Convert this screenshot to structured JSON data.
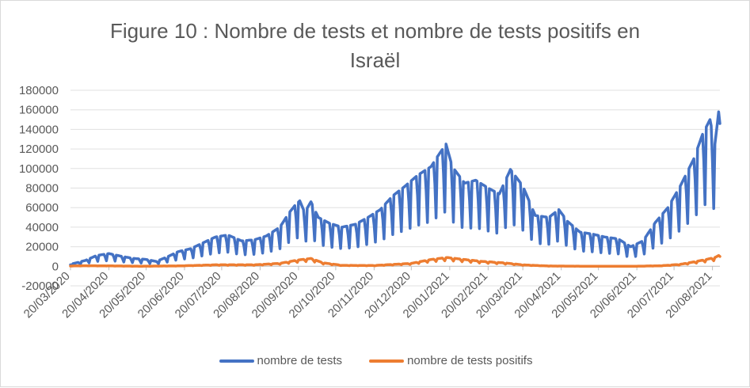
{
  "chart_data": {
    "type": "line",
    "title": "Figure 10 : Nombre de tests et nombre de tests positifs en Israël",
    "title_lines": [
      "Figure 10 : Nombre de tests et nombre de tests positifs en",
      "Israël"
    ],
    "xlabel": "",
    "ylabel": "",
    "ylim": [
      -20000,
      180000
    ],
    "y_ticks": [
      -20000,
      0,
      20000,
      40000,
      60000,
      80000,
      100000,
      120000,
      140000,
      160000,
      180000
    ],
    "y_tick_labels": [
      "-20000",
      "0",
      "20000",
      "40000",
      "60000",
      "80000",
      "100000",
      "120000",
      "140000",
      "160000",
      "180000"
    ],
    "x_range": [
      "2020-03-20",
      "2021-08-26"
    ],
    "x_tick_dates": [
      "2020-03-20",
      "2020-04-20",
      "2020-05-20",
      "2020-06-20",
      "2020-07-20",
      "2020-08-20",
      "2020-09-20",
      "2020-10-20",
      "2020-11-20",
      "2020-12-20",
      "2021-01-20",
      "2021-02-20",
      "2021-03-20",
      "2021-04-20",
      "2021-05-20",
      "2021-06-20",
      "2021-07-20",
      "2021-08-20"
    ],
    "x_tick_labels": [
      "20/03/2020",
      "20/04/2020",
      "20/05/2020",
      "20/06/2020",
      "20/07/2020",
      "20/08/2020",
      "20/09/2020",
      "20/10/2020",
      "20/11/2020",
      "20/12/2020",
      "20/01/2021",
      "20/02/2021",
      "20/03/2021",
      "20/04/2021",
      "20/05/2021",
      "20/06/2021",
      "20/07/2021",
      "20/08/2021"
    ],
    "grid": true,
    "legend_position": "bottom",
    "series": [
      {
        "name": "nombre de tests",
        "color": "#4472c4",
        "weekly_dip_pct": 55,
        "points": [
          [
            "2020-03-20",
            2000
          ],
          [
            "2020-04-01",
            6000
          ],
          [
            "2020-04-10",
            11000
          ],
          [
            "2020-04-20",
            13000
          ],
          [
            "2020-05-01",
            10000
          ],
          [
            "2020-05-10",
            8000
          ],
          [
            "2020-05-20",
            7000
          ],
          [
            "2020-05-28",
            5000
          ],
          [
            "2020-06-05",
            9000
          ],
          [
            "2020-06-15",
            15000
          ],
          [
            "2020-06-25",
            18000
          ],
          [
            "2020-07-05",
            24000
          ],
          [
            "2020-07-15",
            30000
          ],
          [
            "2020-07-25",
            32000
          ],
          [
            "2020-08-05",
            26000
          ],
          [
            "2020-08-15",
            27000
          ],
          [
            "2020-08-25",
            31000
          ],
          [
            "2020-09-05",
            40000
          ],
          [
            "2020-09-12",
            54000
          ],
          [
            "2020-09-17",
            62000
          ],
          [
            "2020-09-21",
            67000
          ],
          [
            "2020-09-25",
            55000
          ],
          [
            "2020-09-30",
            66000
          ],
          [
            "2020-10-06",
            50000
          ],
          [
            "2020-10-15",
            44000
          ],
          [
            "2020-10-25",
            40000
          ],
          [
            "2020-11-05",
            43000
          ],
          [
            "2020-11-15",
            50000
          ],
          [
            "2020-11-25",
            58000
          ],
          [
            "2020-12-05",
            72000
          ],
          [
            "2020-12-15",
            82000
          ],
          [
            "2020-12-25",
            93000
          ],
          [
            "2021-01-05",
            102000
          ],
          [
            "2021-01-10",
            112000
          ],
          [
            "2021-01-17",
            125000
          ],
          [
            "2021-01-22",
            102000
          ],
          [
            "2021-02-01",
            85000
          ],
          [
            "2021-02-10",
            88000
          ],
          [
            "2021-02-20",
            80000
          ],
          [
            "2021-03-01",
            74000
          ],
          [
            "2021-03-10",
            99000
          ],
          [
            "2021-03-20",
            82000
          ],
          [
            "2021-03-30",
            52000
          ],
          [
            "2021-04-10",
            50000
          ],
          [
            "2021-04-18",
            58000
          ],
          [
            "2021-04-25",
            46000
          ],
          [
            "2021-05-05",
            35000
          ],
          [
            "2021-05-15",
            33000
          ],
          [
            "2021-05-25",
            30000
          ],
          [
            "2021-06-05",
            28000
          ],
          [
            "2021-06-15",
            20000
          ],
          [
            "2021-06-25",
            26000
          ],
          [
            "2021-07-05",
            45000
          ],
          [
            "2021-07-15",
            60000
          ],
          [
            "2021-07-25",
            82000
          ],
          [
            "2021-08-05",
            110000
          ],
          [
            "2021-08-12",
            135000
          ],
          [
            "2021-08-18",
            150000
          ],
          [
            "2021-08-22",
            125000
          ],
          [
            "2021-08-25",
            158000
          ],
          [
            "2021-08-26",
            146000
          ]
        ]
      },
      {
        "name": "nombre de tests positifs",
        "color": "#ed7d31",
        "weekly_dip_pct": 35,
        "points": [
          [
            "2020-03-20",
            300
          ],
          [
            "2020-04-01",
            600
          ],
          [
            "2020-04-15",
            500
          ],
          [
            "2020-05-15",
            100
          ],
          [
            "2020-06-15",
            400
          ],
          [
            "2020-07-15",
            1500
          ],
          [
            "2020-08-15",
            1500
          ],
          [
            "2020-09-05",
            3000
          ],
          [
            "2020-09-20",
            6500
          ],
          [
            "2020-09-30",
            8000
          ],
          [
            "2020-10-10",
            3500
          ],
          [
            "2020-10-25",
            1000
          ],
          [
            "2020-11-20",
            800
          ],
          [
            "2020-12-20",
            3000
          ],
          [
            "2021-01-05",
            7000
          ],
          [
            "2021-01-18",
            9000
          ],
          [
            "2021-01-28",
            7500
          ],
          [
            "2021-02-15",
            5000
          ],
          [
            "2021-03-05",
            3500
          ],
          [
            "2021-03-20",
            1500
          ],
          [
            "2021-04-10",
            300
          ],
          [
            "2021-05-15",
            50
          ],
          [
            "2021-06-20",
            100
          ],
          [
            "2021-07-10",
            600
          ],
          [
            "2021-07-25",
            2000
          ],
          [
            "2021-08-05",
            4500
          ],
          [
            "2021-08-15",
            7000
          ],
          [
            "2021-08-22",
            9000
          ],
          [
            "2021-08-25",
            11000
          ],
          [
            "2021-08-26",
            10000
          ]
        ]
      }
    ]
  }
}
